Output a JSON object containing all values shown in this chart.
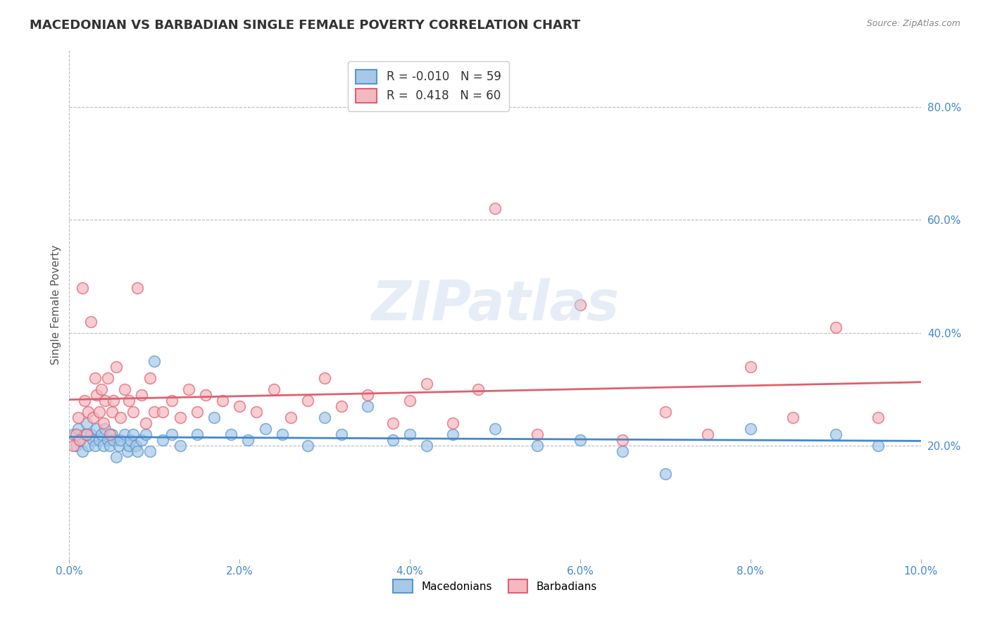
{
  "title": "MACEDONIAN VS BARBADIAN SINGLE FEMALE POVERTY CORRELATION CHART",
  "source": "Source: ZipAtlas.com",
  "ylabel": "Single Female Poverty",
  "xlim": [
    0.0,
    10.0
  ],
  "ylim": [
    0.0,
    90.0
  ],
  "xticks": [
    0.0,
    2.0,
    4.0,
    6.0,
    8.0,
    10.0
  ],
  "yticks_right": [
    20.0,
    40.0,
    60.0,
    80.0
  ],
  "macedonian_fill": "#a8c8e8",
  "macedonian_edge": "#5599cc",
  "barbadian_fill": "#f4b8c0",
  "barbadian_edge": "#e06070",
  "macedonian_line_color": "#4488cc",
  "barbadian_line_color": "#e06070",
  "R_macedonian": -0.01,
  "N_macedonian": 59,
  "R_barbadian": 0.418,
  "N_barbadian": 60,
  "background_color": "#ffffff",
  "grid_color": "#bbbbbb",
  "title_color": "#333333",
  "title_fontsize": 13,
  "axis_label_fontsize": 11,
  "tick_fontsize": 11,
  "tick_color": "#4488cc",
  "macedonians_x": [
    0.05,
    0.08,
    0.1,
    0.12,
    0.15,
    0.18,
    0.2,
    0.22,
    0.25,
    0.28,
    0.3,
    0.32,
    0.35,
    0.38,
    0.4,
    0.42,
    0.45,
    0.48,
    0.5,
    0.52,
    0.55,
    0.58,
    0.6,
    0.65,
    0.68,
    0.7,
    0.72,
    0.75,
    0.78,
    0.8,
    0.85,
    0.9,
    0.95,
    1.0,
    1.1,
    1.2,
    1.3,
    1.5,
    1.7,
    1.9,
    2.1,
    2.3,
    2.5,
    2.8,
    3.0,
    3.2,
    3.5,
    3.8,
    4.0,
    4.2,
    4.5,
    5.0,
    5.5,
    6.0,
    6.5,
    7.0,
    8.0,
    9.0,
    9.5
  ],
  "macedonians_y": [
    22,
    20,
    23,
    21,
    19,
    22,
    24,
    20,
    22,
    21,
    20,
    23,
    21,
    22,
    20,
    23,
    21,
    20,
    22,
    21,
    18,
    20,
    21,
    22,
    19,
    20,
    21,
    22,
    20,
    19,
    21,
    22,
    19,
    35,
    21,
    22,
    20,
    22,
    25,
    22,
    21,
    23,
    22,
    20,
    25,
    22,
    27,
    21,
    22,
    20,
    22,
    23,
    20,
    21,
    19,
    15,
    23,
    22,
    20
  ],
  "barbadians_x": [
    0.05,
    0.08,
    0.1,
    0.12,
    0.15,
    0.18,
    0.2,
    0.22,
    0.25,
    0.28,
    0.3,
    0.32,
    0.35,
    0.38,
    0.4,
    0.42,
    0.45,
    0.48,
    0.5,
    0.52,
    0.55,
    0.6,
    0.65,
    0.7,
    0.75,
    0.8,
    0.85,
    0.9,
    0.95,
    1.0,
    1.1,
    1.2,
    1.3,
    1.4,
    1.5,
    1.6,
    1.8,
    2.0,
    2.2,
    2.4,
    2.6,
    2.8,
    3.0,
    3.2,
    3.5,
    3.8,
    4.0,
    4.2,
    4.5,
    4.8,
    5.0,
    5.5,
    6.0,
    6.5,
    7.0,
    7.5,
    8.0,
    8.5,
    9.0,
    9.5
  ],
  "barbadians_y": [
    20,
    22,
    25,
    21,
    48,
    28,
    22,
    26,
    42,
    25,
    32,
    29,
    26,
    30,
    24,
    28,
    32,
    22,
    26,
    28,
    34,
    25,
    30,
    28,
    26,
    48,
    29,
    24,
    32,
    26,
    26,
    28,
    25,
    30,
    26,
    29,
    28,
    27,
    26,
    30,
    25,
    28,
    32,
    27,
    29,
    24,
    28,
    31,
    24,
    30,
    62,
    22,
    45,
    21,
    26,
    22,
    34,
    25,
    41,
    25
  ]
}
